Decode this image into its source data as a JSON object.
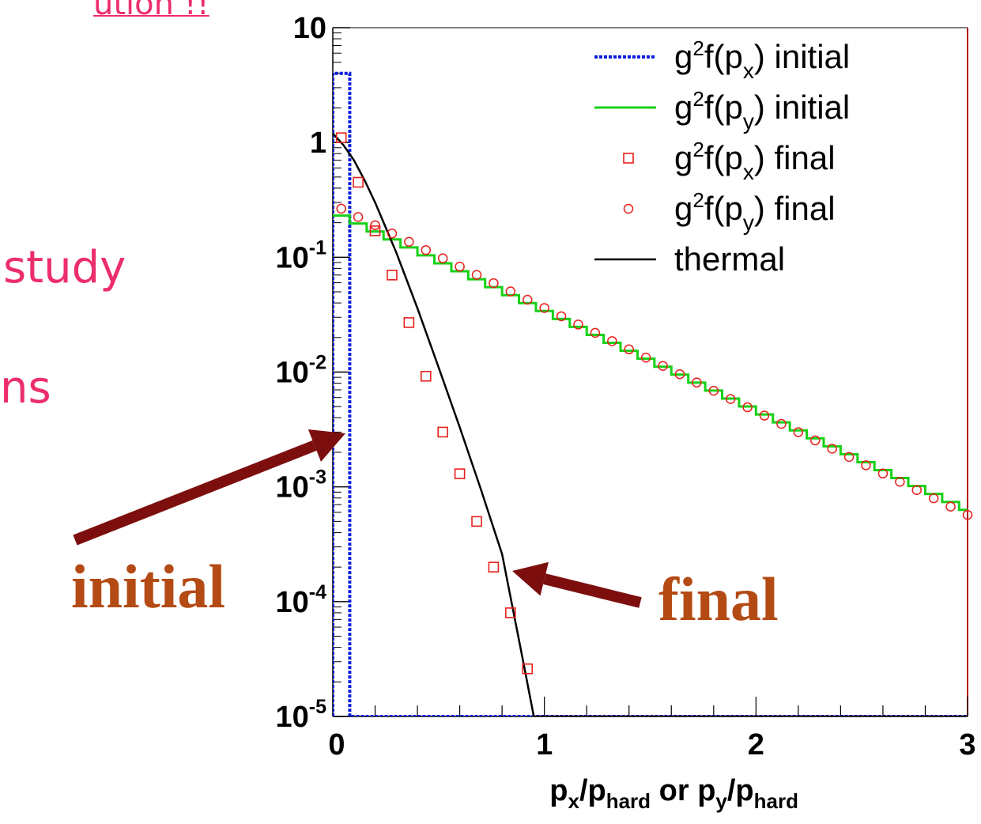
{
  "slide": {
    "lines": [
      "ution !!",
      "study",
      "ns"
    ],
    "text_color": "#ec2e6b"
  },
  "callouts": {
    "initial": "initial",
    "final": "final",
    "text_color": "#b44a14",
    "arrow_color": "#7d0e0e"
  },
  "chart_data": {
    "type": "line",
    "xlabel": {
      "parts": [
        {
          "t": "p"
        },
        {
          "t": "x",
          "sub": true
        },
        {
          "t": "/p"
        },
        {
          "t": "hard",
          "sub": true
        },
        {
          "t": " or "
        },
        {
          "t": "p"
        },
        {
          "t": "y",
          "sub": true
        },
        {
          "t": "/p"
        },
        {
          "t": "hard",
          "sub": true
        }
      ]
    },
    "ylabel": "",
    "xlim": [
      0,
      3
    ],
    "ylim": [
      1e-05,
      10
    ],
    "y_scale": "log",
    "x_ticks": [
      0,
      1,
      2,
      3
    ],
    "y_ticks": [
      {
        "value": 10,
        "base": "10",
        "exp": ""
      },
      {
        "value": 1,
        "base": "1",
        "exp": ""
      },
      {
        "value": 0.1,
        "base": "10",
        "exp": "-1"
      },
      {
        "value": 0.01,
        "base": "10",
        "exp": "-2"
      },
      {
        "value": 0.001,
        "base": "10",
        "exp": "-3"
      },
      {
        "value": 0.0001,
        "base": "10",
        "exp": "-4"
      },
      {
        "value": 1e-05,
        "base": "10",
        "exp": "-5"
      }
    ],
    "grid": false,
    "legend_position": "top-right",
    "series": [
      {
        "name": "g²f(pₓ) initial",
        "legend": {
          "pre": "g",
          "sup": "2",
          "mid": "f(p",
          "sub": "x",
          "post": ") initial"
        },
        "style": "dotted-line",
        "color": "#0c1ee0",
        "x": [
          0,
          0,
          0.08,
          0.08,
          3
        ],
        "y": [
          1e-05,
          4,
          4,
          1e-05,
          1e-05
        ]
      },
      {
        "name": "g²f(p_y) initial",
        "legend": {
          "pre": "g",
          "sup": "2",
          "mid": "f(p",
          "sub": "y",
          "post": ") initial"
        },
        "style": "step-line",
        "color": "#16d016",
        "step": 0.08,
        "x_start": 0,
        "x_end": 3,
        "y_start": 0.25,
        "y_end": 0.00063
      },
      {
        "name": "g²f(pₓ) final",
        "legend": {
          "pre": "g",
          "sup": "2",
          "mid": "f(p",
          "sub": "x",
          "post": ") final"
        },
        "style": "square-marker",
        "color": "#e8201a",
        "x": [
          0.04,
          0.12,
          0.2,
          0.28,
          0.36,
          0.44,
          0.52,
          0.6,
          0.68,
          0.76,
          0.84,
          0.92
        ],
        "y": [
          1.1,
          0.45,
          0.17,
          0.07,
          0.027,
          0.0092,
          0.003,
          0.0013,
          0.0005,
          0.0002,
          8e-05,
          2.6e-05
        ]
      },
      {
        "name": "g²f(p_y) final",
        "legend": {
          "pre": "g",
          "sup": "2",
          "mid": "f(p",
          "sub": "y",
          "post": ") final"
        },
        "style": "circle-marker",
        "color": "#e8201a",
        "x_start": 0.04,
        "x_step": 0.08,
        "count": 38,
        "y_start": 0.265,
        "y_end": 0.00057
      },
      {
        "name": "thermal",
        "legend": {
          "pre": "thermal",
          "sup": "",
          "mid": "",
          "sub": "",
          "post": ""
        },
        "style": "solid-line",
        "color": "#000000",
        "x": [
          0,
          0.05,
          0.1,
          0.15,
          0.2,
          0.3,
          0.4,
          0.5,
          0.6,
          0.7,
          0.8,
          0.9,
          0.95,
          3
        ],
        "y": [
          1.2,
          0.95,
          0.7,
          0.47,
          0.3,
          0.11,
          0.036,
          0.011,
          0.0033,
          0.00095,
          0.00026,
          3e-05,
          1e-05,
          1e-05
        ]
      }
    ],
    "axis_color": "#000000",
    "frame_right_color": "#b51018"
  }
}
